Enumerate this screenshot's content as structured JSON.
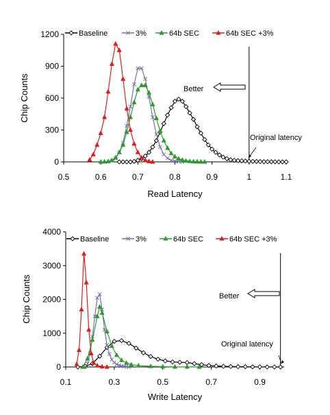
{
  "chart_data": [
    {
      "type": "line",
      "xlabel": "Read Latency",
      "ylabel": "Chip Counts",
      "xlim": [
        0.5,
        1.1
      ],
      "ylim": [
        0,
        1200
      ],
      "xticks": [
        "0.5",
        "0.6",
        "0.7",
        "0.8",
        "0.9",
        "1",
        "1.1"
      ],
      "yticks": [
        "0",
        "300",
        "600",
        "900",
        "1200"
      ],
      "grid": false,
      "legend": "top",
      "annotations": {
        "better": "Better",
        "original": "Original latency",
        "original_x": 1.0
      },
      "series": [
        {
          "name": "Baseline",
          "color": "#000000",
          "marker": "diamond",
          "x": [
            0.65,
            0.66,
            0.67,
            0.68,
            0.69,
            0.7,
            0.71,
            0.72,
            0.73,
            0.74,
            0.75,
            0.76,
            0.77,
            0.78,
            0.79,
            0.8,
            0.81,
            0.82,
            0.83,
            0.84,
            0.85,
            0.86,
            0.87,
            0.88,
            0.89,
            0.9,
            0.91,
            0.92,
            0.93,
            0.94,
            0.95,
            0.96,
            0.97,
            0.98,
            0.99,
            1.0,
            1.01,
            1.02,
            1.03,
            1.04,
            1.05,
            1.06,
            1.07,
            1.08,
            1.09,
            1.1
          ],
          "y": [
            0,
            0,
            0,
            0,
            5,
            15,
            30,
            55,
            90,
            140,
            200,
            280,
            360,
            440,
            510,
            570,
            590,
            570,
            520,
            460,
            400,
            330,
            270,
            210,
            160,
            120,
            90,
            65,
            45,
            30,
            20,
            15,
            12,
            10,
            8,
            6,
            5,
            4,
            3,
            2,
            2,
            1,
            1,
            0,
            0,
            0
          ]
        },
        {
          "name": "3%",
          "color": "#7b6fb0",
          "marker": "x",
          "x": [
            0.63,
            0.64,
            0.65,
            0.66,
            0.67,
            0.68,
            0.69,
            0.7,
            0.71,
            0.72,
            0.73,
            0.74,
            0.75,
            0.76,
            0.77,
            0.78,
            0.79,
            0.8,
            0.81,
            0.82
          ],
          "y": [
            10,
            30,
            90,
            180,
            340,
            520,
            730,
            880,
            880,
            780,
            610,
            420,
            260,
            140,
            70,
            35,
            15,
            8,
            3,
            0
          ]
        },
        {
          "name": "64b SEC",
          "color": "#2e9a2e",
          "marker": "triangle",
          "x": [
            0.6,
            0.61,
            0.62,
            0.63,
            0.64,
            0.65,
            0.66,
            0.67,
            0.68,
            0.69,
            0.7,
            0.71,
            0.72,
            0.73,
            0.74,
            0.75,
            0.76,
            0.77,
            0.78,
            0.79,
            0.8,
            0.81,
            0.82,
            0.83,
            0.84,
            0.85,
            0.86,
            0.87,
            0.88
          ],
          "y": [
            0,
            2,
            5,
            15,
            40,
            90,
            160,
            280,
            420,
            560,
            680,
            720,
            720,
            650,
            540,
            410,
            290,
            200,
            130,
            80,
            50,
            30,
            18,
            10,
            6,
            3,
            2,
            1,
            0
          ]
        },
        {
          "name": "64b SEC +3%",
          "color": "#e01b1b",
          "marker": "triangle",
          "x": [
            0.57,
            0.58,
            0.59,
            0.6,
            0.61,
            0.62,
            0.63,
            0.64,
            0.65,
            0.66,
            0.67,
            0.68,
            0.69,
            0.7,
            0.71,
            0.72,
            0.73,
            0.74
          ],
          "y": [
            20,
            70,
            160,
            270,
            420,
            660,
            920,
            1110,
            1050,
            780,
            500,
            300,
            170,
            90,
            40,
            15,
            5,
            0
          ]
        }
      ]
    },
    {
      "type": "line",
      "xlabel": "Write Latency",
      "ylabel": "Chip Counts",
      "xlim": [
        0.1,
        1.0
      ],
      "ylim": [
        0,
        4000
      ],
      "xticks": [
        "0.1",
        "0.3",
        "0.5",
        "0.7",
        "0.9"
      ],
      "yticks": [
        "0",
        "1000",
        "2000",
        "3000",
        "4000"
      ],
      "grid": false,
      "legend": "top",
      "annotations": {
        "better": "Better",
        "original": "Original latency",
        "original_x": 0.985
      },
      "series": [
        {
          "name": "Baseline",
          "color": "#000000",
          "marker": "diamond",
          "x": [
            0.15,
            0.18,
            0.21,
            0.24,
            0.27,
            0.3,
            0.33,
            0.36,
            0.39,
            0.42,
            0.45,
            0.48,
            0.51,
            0.54,
            0.57,
            0.6,
            0.63,
            0.66,
            0.69,
            0.72,
            0.75,
            0.78,
            0.81,
            0.84,
            0.87,
            0.9,
            0.93,
            0.96,
            0.985
          ],
          "y": [
            0,
            20,
            100,
            320,
            580,
            760,
            780,
            700,
            560,
            420,
            310,
            230,
            180,
            150,
            140,
            130,
            100,
            70,
            45,
            30,
            20,
            15,
            10,
            8,
            5,
            3,
            2,
            1,
            0
          ]
        },
        {
          "name": "3%",
          "color": "#7b6fb0",
          "marker": "x",
          "x": [
            0.18,
            0.19,
            0.2,
            0.21,
            0.22,
            0.23,
            0.24,
            0.25,
            0.26,
            0.27,
            0.28,
            0.29,
            0.3,
            0.31,
            0.32,
            0.33,
            0.34,
            0.35,
            0.36
          ],
          "y": [
            0,
            100,
            400,
            900,
            1500,
            2050,
            2150,
            1700,
            1100,
            650,
            380,
            220,
            130,
            80,
            50,
            30,
            20,
            10,
            0
          ]
        },
        {
          "name": "64b SEC",
          "color": "#2e9a2e",
          "marker": "triangle",
          "x": [
            0.17,
            0.19,
            0.21,
            0.23,
            0.24,
            0.25,
            0.27,
            0.29,
            0.31,
            0.33,
            0.35,
            0.37,
            0.4,
            0.45,
            0.5,
            0.55,
            0.6,
            0.65
          ],
          "y": [
            0,
            250,
            800,
            1500,
            1780,
            1600,
            1050,
            620,
            350,
            200,
            120,
            70,
            40,
            20,
            10,
            5,
            2,
            0
          ]
        },
        {
          "name": "64b SEC +3%",
          "color": "#e01b1b",
          "marker": "triangle",
          "x": [
            0.145,
            0.155,
            0.165,
            0.175,
            0.185,
            0.195,
            0.205,
            0.215,
            0.23,
            0.25,
            0.27
          ],
          "y": [
            80,
            500,
            1700,
            3350,
            2500,
            1100,
            400,
            120,
            40,
            10,
            0
          ]
        }
      ]
    }
  ]
}
